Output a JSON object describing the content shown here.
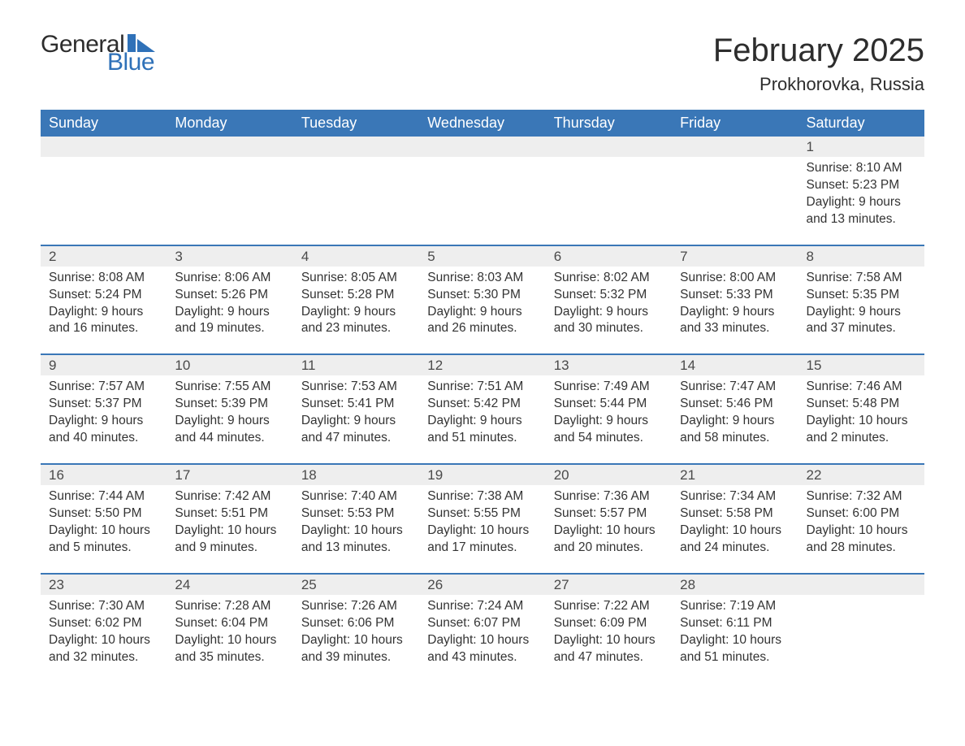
{
  "brand": {
    "line1": "General",
    "line2": "Blue",
    "flag_color": "#2f71b8",
    "text_color": "#2d2d2d"
  },
  "header": {
    "month_title": "February 2025",
    "location": "Prokhorovka, Russia"
  },
  "colors": {
    "header_bg": "#3a77b7",
    "header_text": "#ffffff",
    "daynum_bg": "#eeeeee",
    "week_sep": "#3a77b7",
    "body_text": "#333333",
    "background": "#ffffff"
  },
  "typography": {
    "month_title_fontsize": 40,
    "location_fontsize": 22,
    "weekday_fontsize": 18,
    "daynum_fontsize": 17,
    "body_fontsize": 15.5,
    "logo_fontsize": 30
  },
  "weekdays": [
    "Sunday",
    "Monday",
    "Tuesday",
    "Wednesday",
    "Thursday",
    "Friday",
    "Saturday"
  ],
  "weeks": [
    [
      null,
      null,
      null,
      null,
      null,
      null,
      {
        "d": "1",
        "sunrise": "8:10 AM",
        "sunset": "5:23 PM",
        "dl1": "9 hours",
        "dl2": "and 13 minutes."
      }
    ],
    [
      {
        "d": "2",
        "sunrise": "8:08 AM",
        "sunset": "5:24 PM",
        "dl1": "9 hours",
        "dl2": "and 16 minutes."
      },
      {
        "d": "3",
        "sunrise": "8:06 AM",
        "sunset": "5:26 PM",
        "dl1": "9 hours",
        "dl2": "and 19 minutes."
      },
      {
        "d": "4",
        "sunrise": "8:05 AM",
        "sunset": "5:28 PM",
        "dl1": "9 hours",
        "dl2": "and 23 minutes."
      },
      {
        "d": "5",
        "sunrise": "8:03 AM",
        "sunset": "5:30 PM",
        "dl1": "9 hours",
        "dl2": "and 26 minutes."
      },
      {
        "d": "6",
        "sunrise": "8:02 AM",
        "sunset": "5:32 PM",
        "dl1": "9 hours",
        "dl2": "and 30 minutes."
      },
      {
        "d": "7",
        "sunrise": "8:00 AM",
        "sunset": "5:33 PM",
        "dl1": "9 hours",
        "dl2": "and 33 minutes."
      },
      {
        "d": "8",
        "sunrise": "7:58 AM",
        "sunset": "5:35 PM",
        "dl1": "9 hours",
        "dl2": "and 37 minutes."
      }
    ],
    [
      {
        "d": "9",
        "sunrise": "7:57 AM",
        "sunset": "5:37 PM",
        "dl1": "9 hours",
        "dl2": "and 40 minutes."
      },
      {
        "d": "10",
        "sunrise": "7:55 AM",
        "sunset": "5:39 PM",
        "dl1": "9 hours",
        "dl2": "and 44 minutes."
      },
      {
        "d": "11",
        "sunrise": "7:53 AM",
        "sunset": "5:41 PM",
        "dl1": "9 hours",
        "dl2": "and 47 minutes."
      },
      {
        "d": "12",
        "sunrise": "7:51 AM",
        "sunset": "5:42 PM",
        "dl1": "9 hours",
        "dl2": "and 51 minutes."
      },
      {
        "d": "13",
        "sunrise": "7:49 AM",
        "sunset": "5:44 PM",
        "dl1": "9 hours",
        "dl2": "and 54 minutes."
      },
      {
        "d": "14",
        "sunrise": "7:47 AM",
        "sunset": "5:46 PM",
        "dl1": "9 hours",
        "dl2": "and 58 minutes."
      },
      {
        "d": "15",
        "sunrise": "7:46 AM",
        "sunset": "5:48 PM",
        "dl1": "10 hours",
        "dl2": "and 2 minutes."
      }
    ],
    [
      {
        "d": "16",
        "sunrise": "7:44 AM",
        "sunset": "5:50 PM",
        "dl1": "10 hours",
        "dl2": "and 5 minutes."
      },
      {
        "d": "17",
        "sunrise": "7:42 AM",
        "sunset": "5:51 PM",
        "dl1": "10 hours",
        "dl2": "and 9 minutes."
      },
      {
        "d": "18",
        "sunrise": "7:40 AM",
        "sunset": "5:53 PM",
        "dl1": "10 hours",
        "dl2": "and 13 minutes."
      },
      {
        "d": "19",
        "sunrise": "7:38 AM",
        "sunset": "5:55 PM",
        "dl1": "10 hours",
        "dl2": "and 17 minutes."
      },
      {
        "d": "20",
        "sunrise": "7:36 AM",
        "sunset": "5:57 PM",
        "dl1": "10 hours",
        "dl2": "and 20 minutes."
      },
      {
        "d": "21",
        "sunrise": "7:34 AM",
        "sunset": "5:58 PM",
        "dl1": "10 hours",
        "dl2": "and 24 minutes."
      },
      {
        "d": "22",
        "sunrise": "7:32 AM",
        "sunset": "6:00 PM",
        "dl1": "10 hours",
        "dl2": "and 28 minutes."
      }
    ],
    [
      {
        "d": "23",
        "sunrise": "7:30 AM",
        "sunset": "6:02 PM",
        "dl1": "10 hours",
        "dl2": "and 32 minutes."
      },
      {
        "d": "24",
        "sunrise": "7:28 AM",
        "sunset": "6:04 PM",
        "dl1": "10 hours",
        "dl2": "and 35 minutes."
      },
      {
        "d": "25",
        "sunrise": "7:26 AM",
        "sunset": "6:06 PM",
        "dl1": "10 hours",
        "dl2": "and 39 minutes."
      },
      {
        "d": "26",
        "sunrise": "7:24 AM",
        "sunset": "6:07 PM",
        "dl1": "10 hours",
        "dl2": "and 43 minutes."
      },
      {
        "d": "27",
        "sunrise": "7:22 AM",
        "sunset": "6:09 PM",
        "dl1": "10 hours",
        "dl2": "and 47 minutes."
      },
      {
        "d": "28",
        "sunrise": "7:19 AM",
        "sunset": "6:11 PM",
        "dl1": "10 hours",
        "dl2": "and 51 minutes."
      },
      null
    ]
  ],
  "labels": {
    "sunrise": "Sunrise: ",
    "sunset": "Sunset: ",
    "daylight": "Daylight: "
  }
}
